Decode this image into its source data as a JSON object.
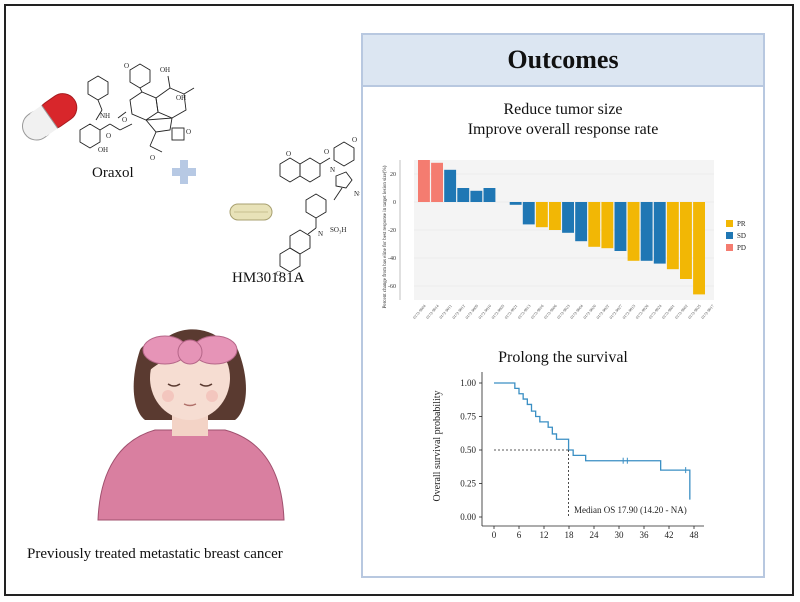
{
  "left": {
    "drug1_label": "Oraxol",
    "drug2_label": "HM30181A",
    "patient_caption": "Previously treated metastatic breast cancer",
    "chem_so3h": "SO₃H"
  },
  "outcomes": {
    "title": "Outcomes",
    "subtitle_line1": "Reduce tumor size",
    "subtitle_line2": "Improve overall response rate",
    "survival_title": "Prolong the survival"
  },
  "colors": {
    "PR": "#f2b705",
    "SD": "#1f77b4",
    "PD": "#f47c70",
    "km": "#3a8fc4",
    "pill_red": "#d8262b",
    "plus": "#b7c9e4"
  },
  "chart_data": [
    {
      "type": "bar",
      "ylabel": "Percent change from bas eline for best response in target lesion size(%)",
      "ylim": [
        -70,
        30
      ],
      "yticks": [
        -60,
        -40,
        -20,
        0,
        20
      ],
      "legend": [
        {
          "name": "PR"
        },
        {
          "name": "SD"
        },
        {
          "name": "PD"
        }
      ],
      "categories": [
        "0172-9004",
        "0172-9014",
        "0172-9011",
        "0172-9012",
        "0172-9009",
        "0172-9010",
        "0172-9005",
        "0172-9021",
        "0172-9013",
        "0172-9016",
        "0172-9006",
        "0172-9023",
        "0172-9004",
        "0172-9020",
        "0172-9022",
        "0172-9027",
        "0172-9015",
        "0172-9026",
        "0172-9024",
        "0172-9001",
        "0172-9002",
        "0172-9025",
        "0172-9017"
      ],
      "values": [
        30,
        28,
        23,
        10,
        8,
        10,
        0,
        -2,
        -16,
        -18,
        -20,
        -22,
        -28,
        -32,
        -33,
        -35,
        -42,
        -42,
        -44,
        -48,
        -55,
        -66,
        0
      ],
      "response": [
        "PD",
        "PD",
        "SD",
        "SD",
        "SD",
        "SD",
        "SD",
        "SD",
        "SD",
        "PR",
        "PR",
        "SD",
        "SD",
        "PR",
        "PR",
        "SD",
        "PR",
        "SD",
        "SD",
        "PR",
        "PR",
        "PR",
        "PR"
      ]
    },
    {
      "type": "line",
      "ylabel": "Overall survival probability",
      "xticks": [
        0,
        6,
        12,
        18,
        24,
        30,
        36,
        42,
        48
      ],
      "yticks": [
        "0.00",
        "0.25",
        "0.50",
        "0.75",
        "1.00"
      ],
      "xlim": [
        0,
        48
      ],
      "ylim": [
        0,
        1
      ],
      "annotation": "Median OS  17.90 (14.20 - NA)",
      "median_os": 17.9,
      "km_curve": {
        "x": [
          0,
          5,
          6,
          7,
          8,
          9,
          10,
          11,
          12,
          13,
          14,
          15,
          17.9,
          19,
          22,
          31,
          40,
          46,
          47
        ],
        "y": [
          1.0,
          0.96,
          0.92,
          0.88,
          0.84,
          0.79,
          0.75,
          0.71,
          0.71,
          0.67,
          0.62,
          0.58,
          0.5,
          0.46,
          0.42,
          0.42,
          0.35,
          0.35,
          0.13
        ]
      }
    }
  ]
}
